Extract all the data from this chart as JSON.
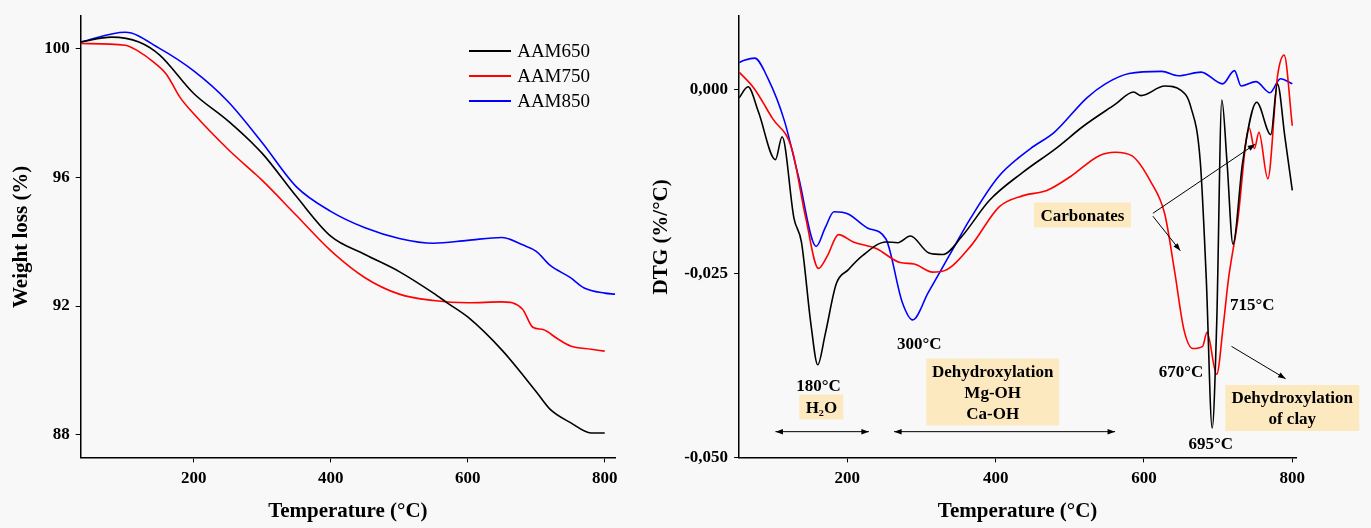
{
  "chart_data": [
    {
      "type": "line",
      "xlabel": "Temperature (°C)",
      "ylabel": "Weight loss (%)",
      "xlim": [
        35,
        815
      ],
      "ylim": [
        87.3,
        101
      ],
      "xticks": [
        200,
        400,
        600,
        800
      ],
      "yticks": [
        88,
        92,
        96,
        100
      ],
      "grid": false,
      "legend": "top right",
      "marker": "none",
      "line_style": "solid",
      "series": [
        {
          "name": "AAM650",
          "color": "#000000",
          "x": [
            35,
            80,
            120,
            150,
            200,
            250,
            300,
            350,
            400,
            450,
            500,
            550,
            570,
            600,
            650,
            700,
            720,
            750,
            780,
            800
          ],
          "values": [
            100.2,
            100.35,
            100.2,
            99.8,
            98.6,
            97.75,
            96.74,
            95.4,
            94.17,
            93.6,
            93.07,
            92.4,
            92.1,
            91.66,
            90.63,
            89.34,
            88.8,
            88.38,
            88.06,
            88.06
          ]
        },
        {
          "name": "AAM750",
          "color": "#ff0000",
          "x": [
            35,
            100,
            120,
            140,
            160,
            180,
            200,
            250,
            300,
            350,
            400,
            450,
            500,
            550,
            600,
            650,
            680,
            695,
            710,
            730,
            750,
            780,
            800
          ],
          "values": [
            100.15,
            100.1,
            99.9,
            99.6,
            99.2,
            98.48,
            97.97,
            96.87,
            95.9,
            94.81,
            93.72,
            92.88,
            92.37,
            92.17,
            92.1,
            92.13,
            91.9,
            91.34,
            91.27,
            91.0,
            90.76,
            90.66,
            90.6
          ]
        },
        {
          "name": "AAM850",
          "color": "#0000ff",
          "x": [
            35,
            100,
            150,
            200,
            250,
            300,
            350,
            400,
            450,
            500,
            550,
            600,
            650,
            680,
            700,
            720,
            750,
            770,
            800,
            815
          ],
          "values": [
            100.2,
            100.5,
            100.0,
            99.3,
            98.35,
            97.07,
            95.7,
            94.94,
            94.43,
            94.1,
            93.95,
            94.04,
            94.13,
            93.9,
            93.7,
            93.27,
            92.88,
            92.56,
            92.4,
            92.37
          ]
        }
      ]
    },
    {
      "type": "line",
      "xlabel": "Temperature (°C)",
      "ylabel": "DTG (%/°C)",
      "xlim": [
        54,
        805
      ],
      "ylim": [
        -0.05,
        0.01
      ],
      "xticks": [
        200,
        400,
        600,
        800
      ],
      "yticks": [
        {
          "value": 0,
          "label": "0,000"
        },
        {
          "value": -0.025,
          "label": "-0,025"
        },
        {
          "value": -0.05,
          "label": "-0,050"
        }
      ],
      "grid": false,
      "marker": "none",
      "line_style": "solid",
      "series": [
        {
          "color": "#000000",
          "x": [
            54,
            66,
            80,
            103,
            112,
            128,
            138,
            151,
            160,
            170,
            185,
            201,
            220,
            252,
            268,
            285,
            310,
            329,
            354,
            392,
            437,
            481,
            519,
            561,
            586,
            596,
            628,
            650,
            663,
            676,
            684,
            692,
            698,
            705,
            712,
            720,
            733,
            752,
            771,
            780,
            790,
            800
          ],
          "values": [
            -0.0011,
            0.0004,
            -0.003,
            -0.0095,
            -0.0064,
            -0.0175,
            -0.0207,
            -0.032,
            -0.0374,
            -0.0333,
            -0.0264,
            -0.0245,
            -0.0226,
            -0.0207,
            -0.0208,
            -0.0199,
            -0.0222,
            -0.0224,
            -0.02,
            -0.015,
            -0.0112,
            -0.008,
            -0.0049,
            -0.002,
            -0.0003,
            -0.0008,
            0.0005,
            -0.0001,
            -0.0023,
            -0.0099,
            -0.0257,
            -0.046,
            -0.032,
            -0.0014,
            -0.0099,
            -0.021,
            -0.0099,
            -0.0017,
            -0.0061,
            0.0008,
            -0.0064,
            -0.0137
          ]
        },
        {
          "color": "#ff0000",
          "x": [
            54,
            74,
            99,
            125,
            144,
            161,
            173,
            188,
            208,
            239,
            271,
            290,
            315,
            331,
            366,
            405,
            437,
            469,
            501,
            539,
            561,
            584,
            609,
            628,
            641,
            654,
            666,
            679,
            685,
            698,
            707,
            714,
            726,
            742,
            749,
            755,
            767,
            780,
            789,
            800
          ],
          "values": [
            0.0024,
            0.0002,
            -0.0039,
            -0.008,
            -0.0175,
            -0.0243,
            -0.0226,
            -0.0197,
            -0.0207,
            -0.0216,
            -0.0235,
            -0.0237,
            -0.0248,
            -0.0246,
            -0.0213,
            -0.0159,
            -0.0144,
            -0.0137,
            -0.0118,
            -0.009,
            -0.0085,
            -0.009,
            -0.0125,
            -0.0169,
            -0.0245,
            -0.0327,
            -0.0352,
            -0.0349,
            -0.033,
            -0.0387,
            -0.032,
            -0.0257,
            -0.0181,
            -0.0052,
            -0.008,
            -0.0058,
            -0.0121,
            0.0018,
            0.0047,
            -0.0049
          ]
        },
        {
          "color": "#0000ff",
          "x": [
            54,
            61,
            75,
            93,
            115,
            134,
            158,
            170,
            182,
            201,
            227,
            252,
            274,
            288,
            309,
            341,
            366,
            404,
            447,
            479,
            523,
            548,
            580,
            624,
            646,
            677,
            706,
            722,
            731,
            751,
            770,
            784,
            800
          ],
          "values": [
            0.0037,
            0.004,
            0.0043,
            0.0015,
            -0.0042,
            -0.0118,
            -0.0213,
            -0.0188,
            -0.0166,
            -0.0169,
            -0.0188,
            -0.0203,
            -0.0289,
            -0.0313,
            -0.0276,
            -0.0219,
            -0.0175,
            -0.0118,
            -0.008,
            -0.0058,
            -0.0011,
            0.0008,
            0.0022,
            0.0025,
            0.0019,
            0.0024,
            0.0008,
            0.0026,
            0.0005,
            0.0011,
            -0.0004,
            0.0015,
            0.0008
          ]
        }
      ],
      "annotations": [
        "180°C",
        "H₂O",
        "300°C",
        "Dehydroxylation\nMg-OH\nCa-OH",
        "Carbonates",
        "715°C",
        "670°C",
        "695°C",
        "Dehydroxylation\nof clay"
      ]
    }
  ]
}
